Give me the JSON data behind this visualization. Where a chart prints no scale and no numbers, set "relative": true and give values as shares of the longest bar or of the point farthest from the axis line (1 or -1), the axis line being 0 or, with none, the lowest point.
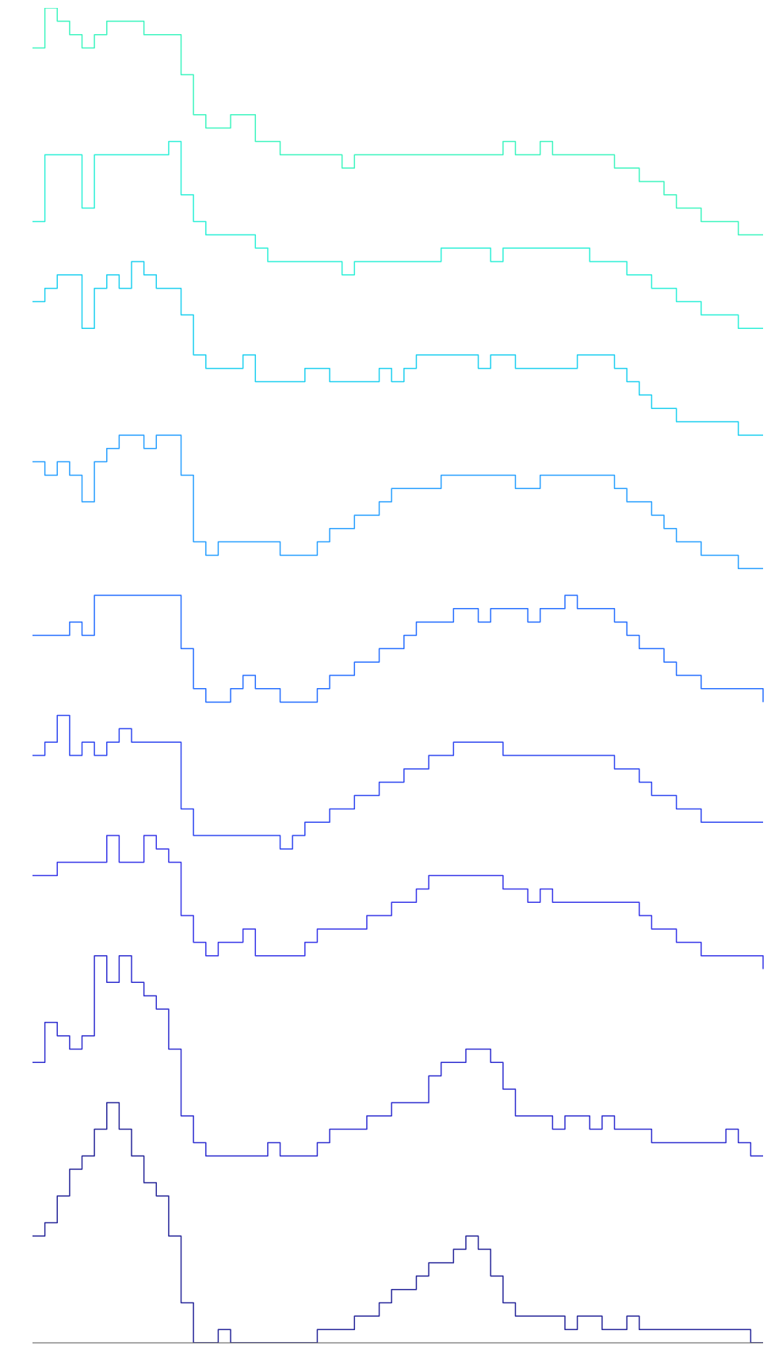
{
  "chart_data": {
    "type": "step",
    "relative": true,
    "categories": [
      null,
      null,
      null,
      null,
      null,
      null,
      null,
      null,
      null,
      null,
      null,
      null,
      null,
      null,
      null,
      null,
      null,
      null,
      null,
      null,
      null,
      null,
      null,
      null,
      null,
      null,
      null,
      null,
      null,
      null,
      null,
      null,
      null,
      null,
      null,
      null,
      null,
      null,
      null,
      null,
      null,
      null,
      null,
      null,
      null,
      null,
      null,
      null,
      null,
      null,
      null,
      null,
      null,
      null,
      null,
      null,
      null,
      null,
      null,
      null
    ],
    "series": [
      {
        "color": "#40f5c0",
        "values": [
          0.97,
          1.0,
          0.99,
          0.98,
          0.97,
          0.98,
          0.99,
          0.99,
          0.99,
          0.98,
          0.98,
          0.98,
          0.95,
          0.92,
          0.91,
          0.91,
          0.92,
          0.92,
          0.9,
          0.9,
          0.89,
          0.89,
          0.89,
          0.89,
          0.89,
          0.88,
          0.89,
          0.89,
          0.89,
          0.89,
          0.89,
          0.89,
          0.89,
          0.89,
          0.89,
          0.89,
          0.89,
          0.89,
          0.9,
          0.89,
          0.89,
          0.9,
          0.89,
          0.89,
          0.89,
          0.89,
          0.89,
          0.88,
          0.88,
          0.87,
          0.87,
          0.86,
          0.85,
          0.85,
          0.84,
          0.84,
          0.84,
          0.83,
          0.83,
          0.83
        ]
      },
      {
        "color": "#30f0d8",
        "values": [
          0.84,
          0.89,
          0.89,
          0.89,
          0.85,
          0.89,
          0.89,
          0.89,
          0.89,
          0.89,
          0.89,
          0.9,
          0.86,
          0.84,
          0.83,
          0.83,
          0.83,
          0.83,
          0.82,
          0.81,
          0.81,
          0.81,
          0.81,
          0.81,
          0.81,
          0.8,
          0.81,
          0.81,
          0.81,
          0.81,
          0.81,
          0.81,
          0.81,
          0.82,
          0.82,
          0.82,
          0.82,
          0.81,
          0.82,
          0.82,
          0.82,
          0.82,
          0.82,
          0.82,
          0.82,
          0.81,
          0.81,
          0.81,
          0.8,
          0.8,
          0.79,
          0.79,
          0.78,
          0.78,
          0.77,
          0.77,
          0.77,
          0.76,
          0.76,
          0.76
        ]
      },
      {
        "color": "#20d0f0",
        "values": [
          0.78,
          0.79,
          0.8,
          0.8,
          0.76,
          0.79,
          0.8,
          0.79,
          0.81,
          0.8,
          0.79,
          0.79,
          0.77,
          0.74,
          0.73,
          0.73,
          0.73,
          0.74,
          0.72,
          0.72,
          0.72,
          0.72,
          0.73,
          0.73,
          0.72,
          0.72,
          0.72,
          0.72,
          0.73,
          0.72,
          0.73,
          0.74,
          0.74,
          0.74,
          0.74,
          0.74,
          0.73,
          0.74,
          0.74,
          0.73,
          0.73,
          0.73,
          0.73,
          0.73,
          0.74,
          0.74,
          0.74,
          0.73,
          0.72,
          0.71,
          0.7,
          0.7,
          0.69,
          0.69,
          0.69,
          0.69,
          0.69,
          0.68,
          0.68,
          0.68
        ]
      },
      {
        "color": "#2aa0ff",
        "values": [
          0.66,
          0.65,
          0.66,
          0.65,
          0.63,
          0.66,
          0.67,
          0.68,
          0.68,
          0.67,
          0.68,
          0.68,
          0.65,
          0.6,
          0.59,
          0.6,
          0.6,
          0.6,
          0.6,
          0.6,
          0.59,
          0.59,
          0.59,
          0.6,
          0.61,
          0.61,
          0.62,
          0.62,
          0.63,
          0.64,
          0.64,
          0.64,
          0.64,
          0.65,
          0.65,
          0.65,
          0.65,
          0.65,
          0.65,
          0.64,
          0.64,
          0.65,
          0.65,
          0.65,
          0.65,
          0.65,
          0.65,
          0.64,
          0.63,
          0.63,
          0.62,
          0.61,
          0.6,
          0.6,
          0.59,
          0.59,
          0.59,
          0.58,
          0.58,
          0.58
        ]
      },
      {
        "color": "#2870ff",
        "values": [
          0.53,
          0.53,
          0.53,
          0.54,
          0.53,
          0.56,
          0.56,
          0.56,
          0.56,
          0.56,
          0.56,
          0.56,
          0.52,
          0.49,
          0.48,
          0.48,
          0.49,
          0.5,
          0.49,
          0.49,
          0.48,
          0.48,
          0.48,
          0.49,
          0.5,
          0.5,
          0.51,
          0.51,
          0.52,
          0.52,
          0.53,
          0.54,
          0.54,
          0.54,
          0.55,
          0.55,
          0.54,
          0.55,
          0.55,
          0.55,
          0.54,
          0.55,
          0.55,
          0.56,
          0.55,
          0.55,
          0.55,
          0.54,
          0.53,
          0.52,
          0.52,
          0.51,
          0.5,
          0.5,
          0.49,
          0.49,
          0.49,
          0.49,
          0.49,
          0.48
        ]
      },
      {
        "color": "#3048f0",
        "values": [
          0.44,
          0.45,
          0.47,
          0.44,
          0.45,
          0.44,
          0.45,
          0.46,
          0.45,
          0.45,
          0.45,
          0.45,
          0.4,
          0.38,
          0.38,
          0.38,
          0.38,
          0.38,
          0.38,
          0.38,
          0.37,
          0.38,
          0.39,
          0.39,
          0.4,
          0.4,
          0.41,
          0.41,
          0.42,
          0.42,
          0.43,
          0.43,
          0.44,
          0.44,
          0.45,
          0.45,
          0.45,
          0.45,
          0.44,
          0.44,
          0.44,
          0.44,
          0.44,
          0.44,
          0.44,
          0.44,
          0.44,
          0.43,
          0.43,
          0.42,
          0.41,
          0.41,
          0.4,
          0.4,
          0.39,
          0.39,
          0.39,
          0.39,
          0.39,
          0.39
        ]
      },
      {
        "color": "#3838e8",
        "values": [
          0.35,
          0.35,
          0.36,
          0.36,
          0.36,
          0.36,
          0.38,
          0.36,
          0.36,
          0.38,
          0.37,
          0.36,
          0.32,
          0.3,
          0.29,
          0.3,
          0.3,
          0.31,
          0.29,
          0.29,
          0.29,
          0.29,
          0.3,
          0.31,
          0.31,
          0.31,
          0.31,
          0.32,
          0.32,
          0.33,
          0.33,
          0.34,
          0.35,
          0.35,
          0.35,
          0.35,
          0.35,
          0.35,
          0.34,
          0.34,
          0.33,
          0.34,
          0.33,
          0.33,
          0.33,
          0.33,
          0.33,
          0.33,
          0.33,
          0.32,
          0.31,
          0.31,
          0.3,
          0.3,
          0.29,
          0.29,
          0.29,
          0.29,
          0.29,
          0.28
        ]
      },
      {
        "color": "#3030d0",
        "values": [
          0.21,
          0.24,
          0.23,
          0.22,
          0.23,
          0.29,
          0.27,
          0.29,
          0.27,
          0.26,
          0.25,
          0.22,
          0.17,
          0.15,
          0.14,
          0.14,
          0.14,
          0.14,
          0.14,
          0.15,
          0.14,
          0.14,
          0.14,
          0.15,
          0.16,
          0.16,
          0.16,
          0.17,
          0.17,
          0.18,
          0.18,
          0.18,
          0.2,
          0.21,
          0.21,
          0.22,
          0.22,
          0.21,
          0.19,
          0.17,
          0.17,
          0.17,
          0.16,
          0.17,
          0.17,
          0.16,
          0.17,
          0.16,
          0.16,
          0.16,
          0.15,
          0.15,
          0.15,
          0.15,
          0.15,
          0.15,
          0.16,
          0.15,
          0.14,
          0.14
        ]
      },
      {
        "color": "#28289a",
        "values": [
          0.08,
          0.09,
          0.11,
          0.13,
          0.14,
          0.16,
          0.18,
          0.16,
          0.14,
          0.12,
          0.11,
          0.08,
          0.03,
          0.0,
          0.0,
          0.01,
          0.0,
          0.0,
          0.0,
          0.0,
          0.0,
          0.0,
          0.0,
          0.01,
          0.01,
          0.01,
          0.02,
          0.02,
          0.03,
          0.04,
          0.04,
          0.05,
          0.06,
          0.06,
          0.07,
          0.08,
          0.07,
          0.05,
          0.03,
          0.02,
          0.02,
          0.02,
          0.02,
          0.01,
          0.02,
          0.02,
          0.01,
          0.01,
          0.02,
          0.01,
          0.01,
          0.01,
          0.01,
          0.01,
          0.01,
          0.01,
          0.01,
          0.01,
          0.0,
          0.0
        ]
      }
    ]
  }
}
